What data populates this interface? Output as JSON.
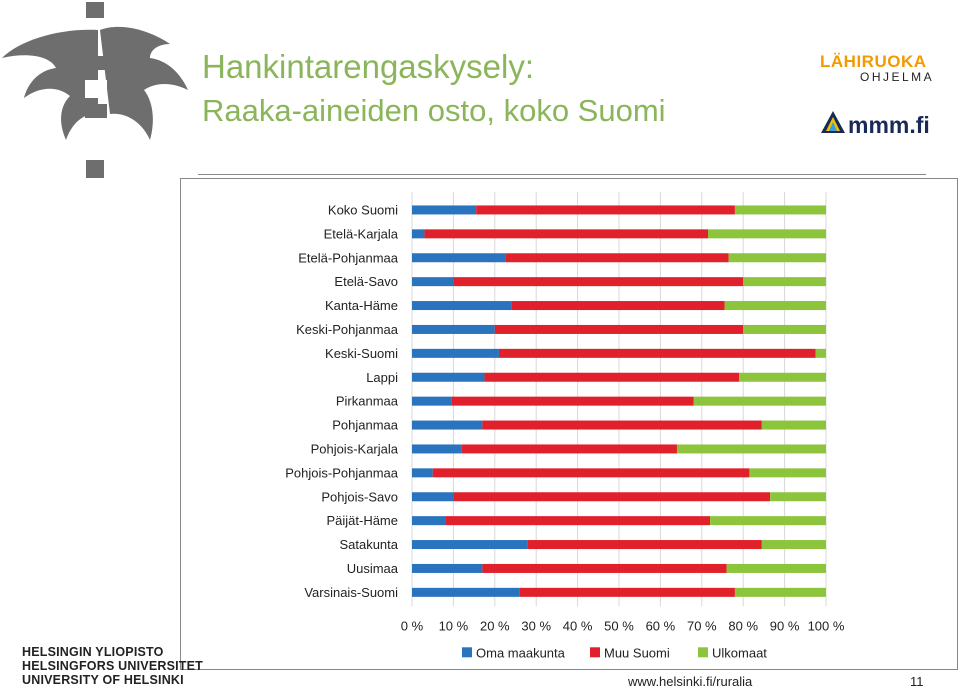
{
  "header": {
    "title_line1": "Hankintarengaskysely:",
    "title_line2": "Raaka-aineiden osto, koko Suomi"
  },
  "logos": {
    "lahiruoka_name": "LÄHIRUOKA",
    "lahiruoka_sub": "OHJELMA",
    "mmm": "mmm.fi",
    "university_icon": "helsinki-flame-logo-icon"
  },
  "university": {
    "line1": "HELSINGIN YLIOPISTO",
    "line2": "HELSINGFORS UNIVERSITET",
    "line3": "UNIVERSITY OF HELSINKI"
  },
  "footer": {
    "url": "www.helsinki.fi/ruralia",
    "page_number": "11"
  },
  "colors": {
    "title_green": "#8ab55a",
    "series_blue": "#2a73be",
    "series_red": "#e0202a",
    "series_green": "#8cc43c"
  },
  "chart_data": {
    "type": "bar",
    "orientation": "horizontal",
    "stacked": true,
    "normalized": true,
    "categories": [
      "Koko Suomi",
      "Etelä-Karjala",
      "Etelä-Pohjanmaa",
      "Etelä-Savo",
      "Kanta-Häme",
      "Keski-Pohjanmaa",
      "Keski-Suomi",
      "Lappi",
      "Pirkanmaa",
      "Pohjanmaa",
      "Pohjois-Karjala",
      "Pohjois-Pohjanmaa",
      "Pohjois-Savo",
      "Päijät-Häme",
      "Satakunta",
      "Uusimaa",
      "Varsinais-Suomi"
    ],
    "series": [
      {
        "name": "Oma maakunta",
        "color": "#2a73be",
        "values": [
          15.5,
          3,
          22.5,
          10,
          24,
          20,
          21,
          17.5,
          9.5,
          17,
          12,
          5,
          10,
          8,
          28,
          17,
          26
        ]
      },
      {
        "name": "Muu Suomi",
        "color": "#e0202a",
        "values": [
          62.5,
          68.5,
          54,
          70,
          51.5,
          60,
          76.5,
          61.5,
          58.5,
          67.5,
          52,
          76.5,
          76.5,
          64,
          56.5,
          59,
          52
        ]
      },
      {
        "name": "Ulkomaat",
        "color": "#8cc43c",
        "values": [
          22,
          28.5,
          23.5,
          20,
          24.5,
          20,
          2.5,
          21,
          32,
          15.5,
          36,
          18.5,
          13.5,
          28,
          15.5,
          24,
          22
        ]
      }
    ],
    "x_ticks": [
      "0 %",
      "10 %",
      "20 %",
      "30 %",
      "40 %",
      "50 %",
      "60 %",
      "70 %",
      "80 %",
      "90 %",
      "100 %"
    ],
    "xlim": [
      0,
      100
    ],
    "grid": true,
    "legend_position": "bottom"
  }
}
